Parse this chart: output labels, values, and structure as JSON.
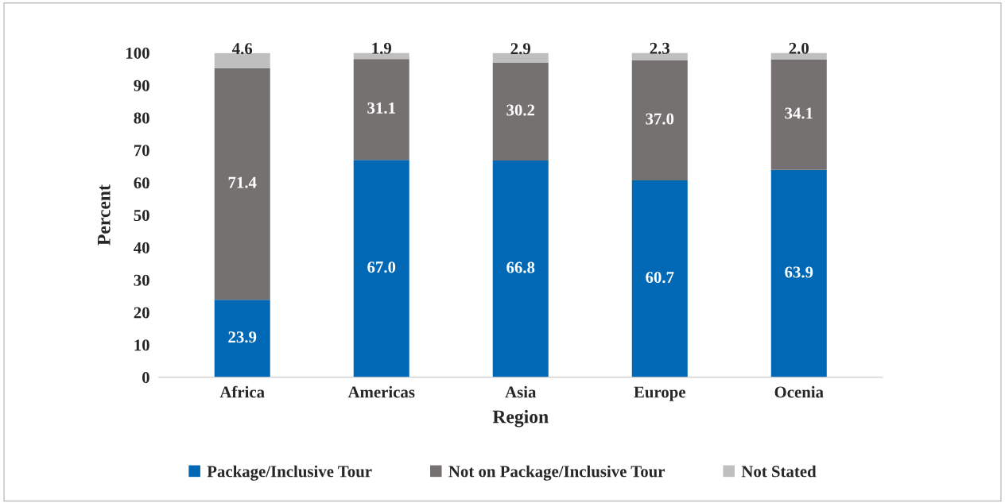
{
  "chart_data": {
    "type": "bar",
    "stacked": true,
    "xlabel": "Region",
    "ylabel": "Percent",
    "categories": [
      "Africa",
      "Americas",
      "Asia",
      "Europe",
      "Ocenia"
    ],
    "series": [
      {
        "name": "Package/Inclusive Tour",
        "color": "#0068b4",
        "values": [
          23.9,
          67.0,
          66.8,
          60.7,
          63.9
        ],
        "value_labels": [
          "23.9",
          "67.0",
          "66.8",
          "60.7",
          "63.9"
        ]
      },
      {
        "name": "Not on Package/Inclusive Tour",
        "color": "#767171",
        "values": [
          71.4,
          31.1,
          30.2,
          37.0,
          34.1
        ],
        "value_labels": [
          "71.4",
          "31.1",
          "30.2",
          "37.0",
          "34.1"
        ]
      },
      {
        "name": "Not Stated",
        "color": "#bfbfbf",
        "values": [
          4.6,
          1.9,
          2.9,
          2.3,
          2.0
        ],
        "value_labels": [
          "4.6",
          "1.9",
          "2.9",
          "2.3",
          "2.0"
        ]
      }
    ],
    "ylim": [
      0,
      100
    ],
    "yticks": [
      0,
      10,
      20,
      30,
      40,
      50,
      60,
      70,
      80,
      90,
      100
    ],
    "legend": "bottom",
    "grid": false
  }
}
